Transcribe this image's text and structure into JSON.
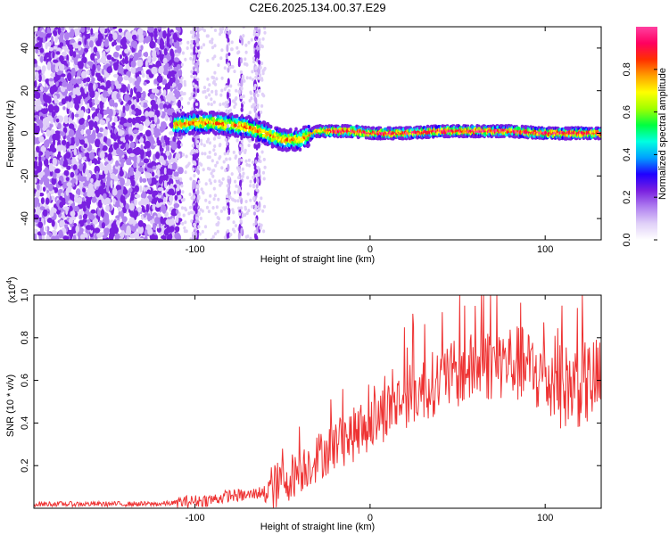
{
  "title": "C2E6.2025.134.00.37.E29",
  "chart_data": [
    {
      "type": "heatmap",
      "title": "C2E6.2025.134.00.37.E29",
      "xlabel": "Height of straight line (km)",
      "ylabel": "Frequency (Hz)",
      "xlim": [
        -192,
        132
      ],
      "ylim": [
        -50,
        50
      ],
      "x_ticks": [
        -100,
        0,
        100
      ],
      "x_tick_labels": [
        "-100",
        "0",
        "100"
      ],
      "y_ticks": [
        -40,
        -20,
        0,
        20,
        40
      ],
      "y_tick_labels": [
        "-40",
        "-20",
        "0",
        "20",
        "40"
      ],
      "colorbar": {
        "label": "Normalized spectral amplitude",
        "range": [
          0.0,
          1.0
        ],
        "ticks": [
          0.0,
          0.2,
          0.4,
          0.6,
          0.8
        ],
        "tick_labels": [
          "0.0",
          "0.2",
          "0.4",
          "0.6",
          "0.8"
        ],
        "colors": [
          "#ffffff",
          "#e0d0f8",
          "#b080f0",
          "#7a20e0",
          "#2000ff",
          "#00a0ff",
          "#00ffe0",
          "#00ff40",
          "#a0ff00",
          "#ffff00",
          "#ffa000",
          "#ff3000",
          "#ff0060",
          "#ff40a0"
        ]
      },
      "ridge": {
        "x": [
          -110,
          -100,
          -90,
          -80,
          -70,
          -60,
          -50,
          -40,
          -35,
          -30,
          -20,
          -10,
          0,
          10,
          20,
          40,
          60,
          80,
          100,
          120,
          132
        ],
        "y": [
          4,
          5,
          5,
          4,
          3,
          0,
          -3,
          -3,
          -1,
          1,
          1,
          1,
          0,
          0,
          0,
          1,
          1,
          1,
          0,
          0,
          0
        ]
      }
    },
    {
      "type": "line",
      "xlabel": "Height of straight line (km)",
      "ylabel": "SNR (10 * v/v)",
      "scale_label": "(x10",
      "scale_exp": "4",
      "scale_close": ")",
      "xlim": [
        -192,
        132
      ],
      "ylim": [
        0,
        1.0
      ],
      "x_ticks": [
        -100,
        0,
        100
      ],
      "x_tick_labels": [
        "-100",
        "0",
        "100"
      ],
      "y_ticks": [
        0.2,
        0.4,
        0.6,
        0.8,
        1.0
      ],
      "y_tick_labels": [
        "0.2",
        "0.4",
        "0.6",
        "0.8",
        "1.0"
      ],
      "series": [
        {
          "name": "SNR",
          "color": "#ee3333",
          "trend_x": [
            -192,
            -120,
            -105,
            -90,
            -80,
            -70,
            -60,
            -50,
            -40,
            -30,
            -20,
            -10,
            0,
            10,
            20,
            30,
            40,
            50,
            60,
            70,
            80,
            90,
            100,
            110,
            120,
            132
          ],
          "trend_y": [
            0.02,
            0.02,
            0.03,
            0.04,
            0.06,
            0.06,
            0.08,
            0.12,
            0.18,
            0.24,
            0.3,
            0.34,
            0.4,
            0.46,
            0.52,
            0.56,
            0.6,
            0.63,
            0.66,
            0.68,
            0.69,
            0.66,
            0.6,
            0.57,
            0.58,
            0.6
          ]
        }
      ]
    }
  ]
}
